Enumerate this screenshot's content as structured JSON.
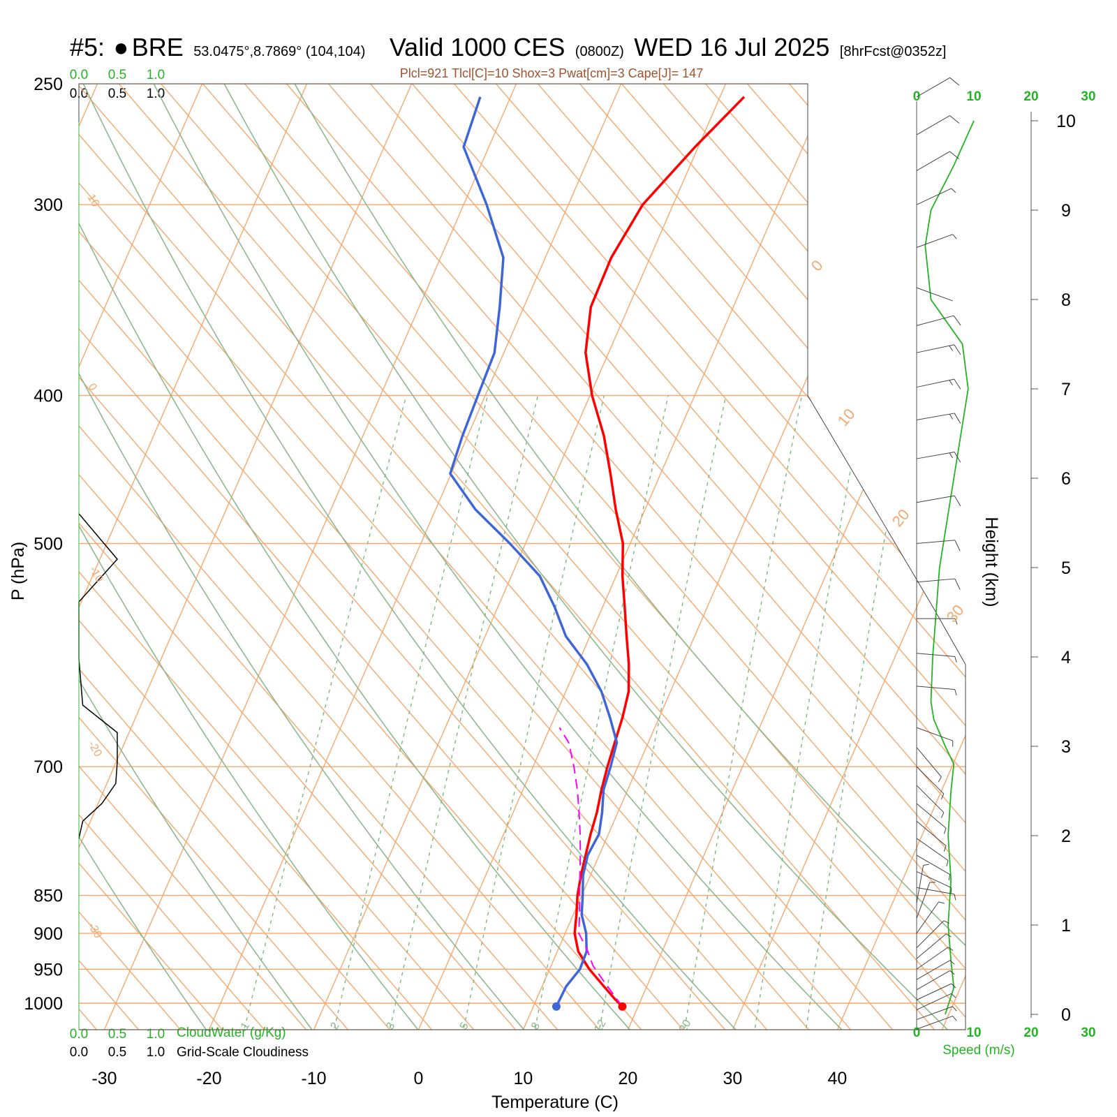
{
  "header": {
    "station_id": "#5:",
    "station_mark": "●",
    "station_name": "BRE",
    "coords": "53.0475°,8.7869° (104,104)",
    "valid_label": "Valid 1000 CES",
    "valid_z": "(0800Z)",
    "date": "WED 16 Jul 2025",
    "forecast": "[8hrFcst@0352z]"
  },
  "indices_line": "Plcl=921 Tlcl[C]=10 Shox=3 Pwat[cm]=3 Cape[J]= 147",
  "colors": {
    "temperature": "#ff0000",
    "dewpoint": "#3f66d6",
    "parcel": "#ff00ff",
    "isotherm": "#f5a86e",
    "dry_adiabat": "#8fb88f",
    "mixing_ratio": "#7fb77f",
    "wind_speed": "#22b422",
    "cloud": "#000000"
  },
  "left_scales": {
    "cloudwater_ticks": [
      "0.0",
      "0.5",
      "1.0"
    ],
    "cloudiness_ticks": [
      "0.0",
      "0.5",
      "1.0"
    ],
    "cloudwater_label": "CloudWater (g/Kg)",
    "cloudiness_label": "Grid-Scale Cloudiness"
  },
  "right_panel": {
    "speed_ticks": [
      "0",
      "10",
      "20",
      "30"
    ],
    "speed_label": "Speed (m/s)",
    "height_label": "Height (km)",
    "height_ticks": [
      "0",
      "1",
      "2",
      "3",
      "4",
      "5",
      "6",
      "7",
      "8",
      "9",
      "10"
    ]
  },
  "chart_data": {
    "type": "line",
    "title": "Valid 1000 CES (0800Z) WED 16 Jul 2025",
    "xlabel": "Temperature (C)",
    "ylabel": "P (hPa)",
    "xlim": [
      -33.5,
      36
    ],
    "ylim": [
      1050,
      250
    ],
    "x_ticks": [
      "-30",
      "-20",
      "-10",
      "0",
      "10",
      "20",
      "30",
      "40"
    ],
    "pressure_ticks": [
      "250",
      "300",
      "400",
      "500",
      "700",
      "850",
      "900",
      "950",
      "1000"
    ],
    "isotherm_labels": [
      "10",
      "0",
      "-10",
      "-20",
      "-30",
      "0",
      "10",
      "20",
      "30"
    ],
    "mixing_ratio_labels": [
      "1",
      "2",
      "3",
      "5",
      "8",
      "12",
      "20"
    ],
    "series": [
      {
        "name": "Temperature",
        "points": [
          [
            18.5,
            1005
          ],
          [
            17.5,
            994
          ],
          [
            15.9,
            975
          ],
          [
            13.8,
            950
          ],
          [
            12.0,
            925
          ],
          [
            10.9,
            900
          ],
          [
            10.3,
            875
          ],
          [
            9.6,
            850
          ],
          [
            9.1,
            825
          ],
          [
            8.7,
            800
          ],
          [
            8.3,
            775
          ],
          [
            8.0,
            750
          ],
          [
            7.5,
            725
          ],
          [
            7.1,
            700
          ],
          [
            6.8,
            675
          ],
          [
            6.5,
            650
          ],
          [
            6.0,
            625
          ],
          [
            4.9,
            600
          ],
          [
            3.5,
            575
          ],
          [
            2.1,
            550
          ],
          [
            0.6,
            525
          ],
          [
            -0.7,
            500
          ],
          [
            -2.8,
            475
          ],
          [
            -4.8,
            450
          ],
          [
            -7.0,
            425
          ],
          [
            -9.8,
            400
          ],
          [
            -12.2,
            375
          ],
          [
            -13.6,
            350
          ],
          [
            -13.7,
            325
          ],
          [
            -12.9,
            300
          ],
          [
            -10.3,
            275
          ],
          [
            -7.7,
            255
          ]
        ]
      },
      {
        "name": "Dewpoint",
        "points": [
          [
            12.2,
            1005
          ],
          [
            12.3,
            975
          ],
          [
            12.9,
            950
          ],
          [
            12.8,
            925
          ],
          [
            12.0,
            900
          ],
          [
            10.8,
            875
          ],
          [
            10.1,
            850
          ],
          [
            9.3,
            825
          ],
          [
            8.9,
            800
          ],
          [
            9.1,
            775
          ],
          [
            8.5,
            750
          ],
          [
            7.7,
            725
          ],
          [
            7.4,
            700
          ],
          [
            7.0,
            675
          ],
          [
            5.3,
            650
          ],
          [
            3.4,
            625
          ],
          [
            0.9,
            600
          ],
          [
            -2.3,
            575
          ],
          [
            -4.6,
            550
          ],
          [
            -7.3,
            525
          ],
          [
            -11.5,
            500
          ],
          [
            -16.2,
            475
          ],
          [
            -20.1,
            450
          ],
          [
            -20.5,
            425
          ],
          [
            -20.7,
            400
          ],
          [
            -20.9,
            375
          ],
          [
            -22.3,
            350
          ],
          [
            -24.0,
            325
          ],
          [
            -27.8,
            300
          ],
          [
            -32.4,
            275
          ],
          [
            -32.9,
            255
          ]
        ]
      },
      {
        "name": "Parcel",
        "dashed": true,
        "points": [
          [
            18.5,
            1005
          ],
          [
            17.0,
            985
          ],
          [
            15.5,
            965
          ],
          [
            14.0,
            945
          ],
          [
            12.7,
            921
          ],
          [
            11.3,
            900
          ],
          [
            10.6,
            875
          ],
          [
            9.8,
            850
          ],
          [
            9.0,
            825
          ],
          [
            8.2,
            800
          ],
          [
            7.3,
            775
          ],
          [
            6.3,
            750
          ],
          [
            5.2,
            725
          ],
          [
            3.9,
            700
          ],
          [
            2.4,
            675
          ],
          [
            0.9,
            660
          ]
        ]
      }
    ],
    "cloudwater": [],
    "cloudiness": [
      {
        "p": 478,
        "value": 0.0
      },
      {
        "p": 512,
        "value": 0.5
      },
      {
        "p": 546,
        "value": 0.0
      },
      {
        "p": 595,
        "value": 0.0
      },
      {
        "p": 638,
        "value": 0.05
      },
      {
        "p": 665,
        "value": 0.5
      },
      {
        "p": 695,
        "value": 0.5
      },
      {
        "p": 718,
        "value": 0.48
      },
      {
        "p": 740,
        "value": 0.3
      },
      {
        "p": 760,
        "value": 0.05
      },
      {
        "p": 780,
        "value": 0.0
      }
    ],
    "wind_speed_profile": {
      "heights_km": [
        0.0,
        0.3,
        0.6,
        1.0,
        1.5,
        2.0,
        2.5,
        2.8,
        3.0,
        3.3,
        3.5,
        4.0,
        5.0,
        6.0,
        7.0,
        7.5,
        8.0,
        8.6,
        9.0,
        9.5,
        10.0
      ],
      "speeds_ms": [
        5,
        6.5,
        6,
        5.5,
        6,
        5.5,
        6,
        6.5,
        5,
        3,
        2.5,
        2.8,
        4,
        6.5,
        9,
        8,
        2.5,
        1.5,
        2.5,
        6.5,
        10
      ]
    },
    "wind_barbs": [
      {
        "p": 1040,
        "dir": 250,
        "spd": 2.5
      },
      {
        "p": 1025,
        "dir": 250,
        "spd": 3
      },
      {
        "p": 1010,
        "dir": 245,
        "spd": 3
      },
      {
        "p": 995,
        "dir": 245,
        "spd": 3.5
      },
      {
        "p": 980,
        "dir": 240,
        "spd": 3.5
      },
      {
        "p": 965,
        "dir": 240,
        "spd": 3
      },
      {
        "p": 950,
        "dir": 235,
        "spd": 3
      },
      {
        "p": 935,
        "dir": 230,
        "spd": 3
      },
      {
        "p": 920,
        "dir": 225,
        "spd": 3
      },
      {
        "p": 900,
        "dir": 215,
        "spd": 3
      },
      {
        "p": 880,
        "dir": 200,
        "spd": 3
      },
      {
        "p": 860,
        "dir": 190,
        "spd": 2.5
      },
      {
        "p": 840,
        "dir": 280,
        "spd": 2.5
      },
      {
        "p": 820,
        "dir": 295,
        "spd": 3
      },
      {
        "p": 800,
        "dir": 300,
        "spd": 3
      },
      {
        "p": 780,
        "dir": 305,
        "spd": 3
      },
      {
        "p": 760,
        "dir": 310,
        "spd": 3
      },
      {
        "p": 740,
        "dir": 310,
        "spd": 3
      },
      {
        "p": 720,
        "dir": 315,
        "spd": 3
      },
      {
        "p": 700,
        "dir": 315,
        "spd": 3
      },
      {
        "p": 680,
        "dir": 320,
        "spd": 3
      },
      {
        "p": 660,
        "dir": 290,
        "spd": 2.5
      },
      {
        "p": 620,
        "dir": 275,
        "spd": 3
      },
      {
        "p": 590,
        "dir": 275,
        "spd": 3.5
      },
      {
        "p": 560,
        "dir": 270,
        "spd": 4
      },
      {
        "p": 530,
        "dir": 265,
        "spd": 5
      },
      {
        "p": 500,
        "dir": 265,
        "spd": 6
      },
      {
        "p": 470,
        "dir": 260,
        "spd": 7
      },
      {
        "p": 440,
        "dir": 260,
        "spd": 8
      },
      {
        "p": 415,
        "dir": 260,
        "spd": 9
      },
      {
        "p": 395,
        "dir": 258,
        "spd": 9
      },
      {
        "p": 375,
        "dir": 258,
        "spd": 8
      },
      {
        "p": 360,
        "dir": 255,
        "spd": 6
      },
      {
        "p": 340,
        "dir": 290,
        "spd": 2
      },
      {
        "p": 320,
        "dir": 250,
        "spd": 3
      },
      {
        "p": 300,
        "dir": 245,
        "spd": 4
      },
      {
        "p": 285,
        "dir": 240,
        "spd": 5
      },
      {
        "p": 270,
        "dir": 240,
        "spd": 6
      },
      {
        "p": 255,
        "dir": 240,
        "spd": 7
      }
    ]
  }
}
